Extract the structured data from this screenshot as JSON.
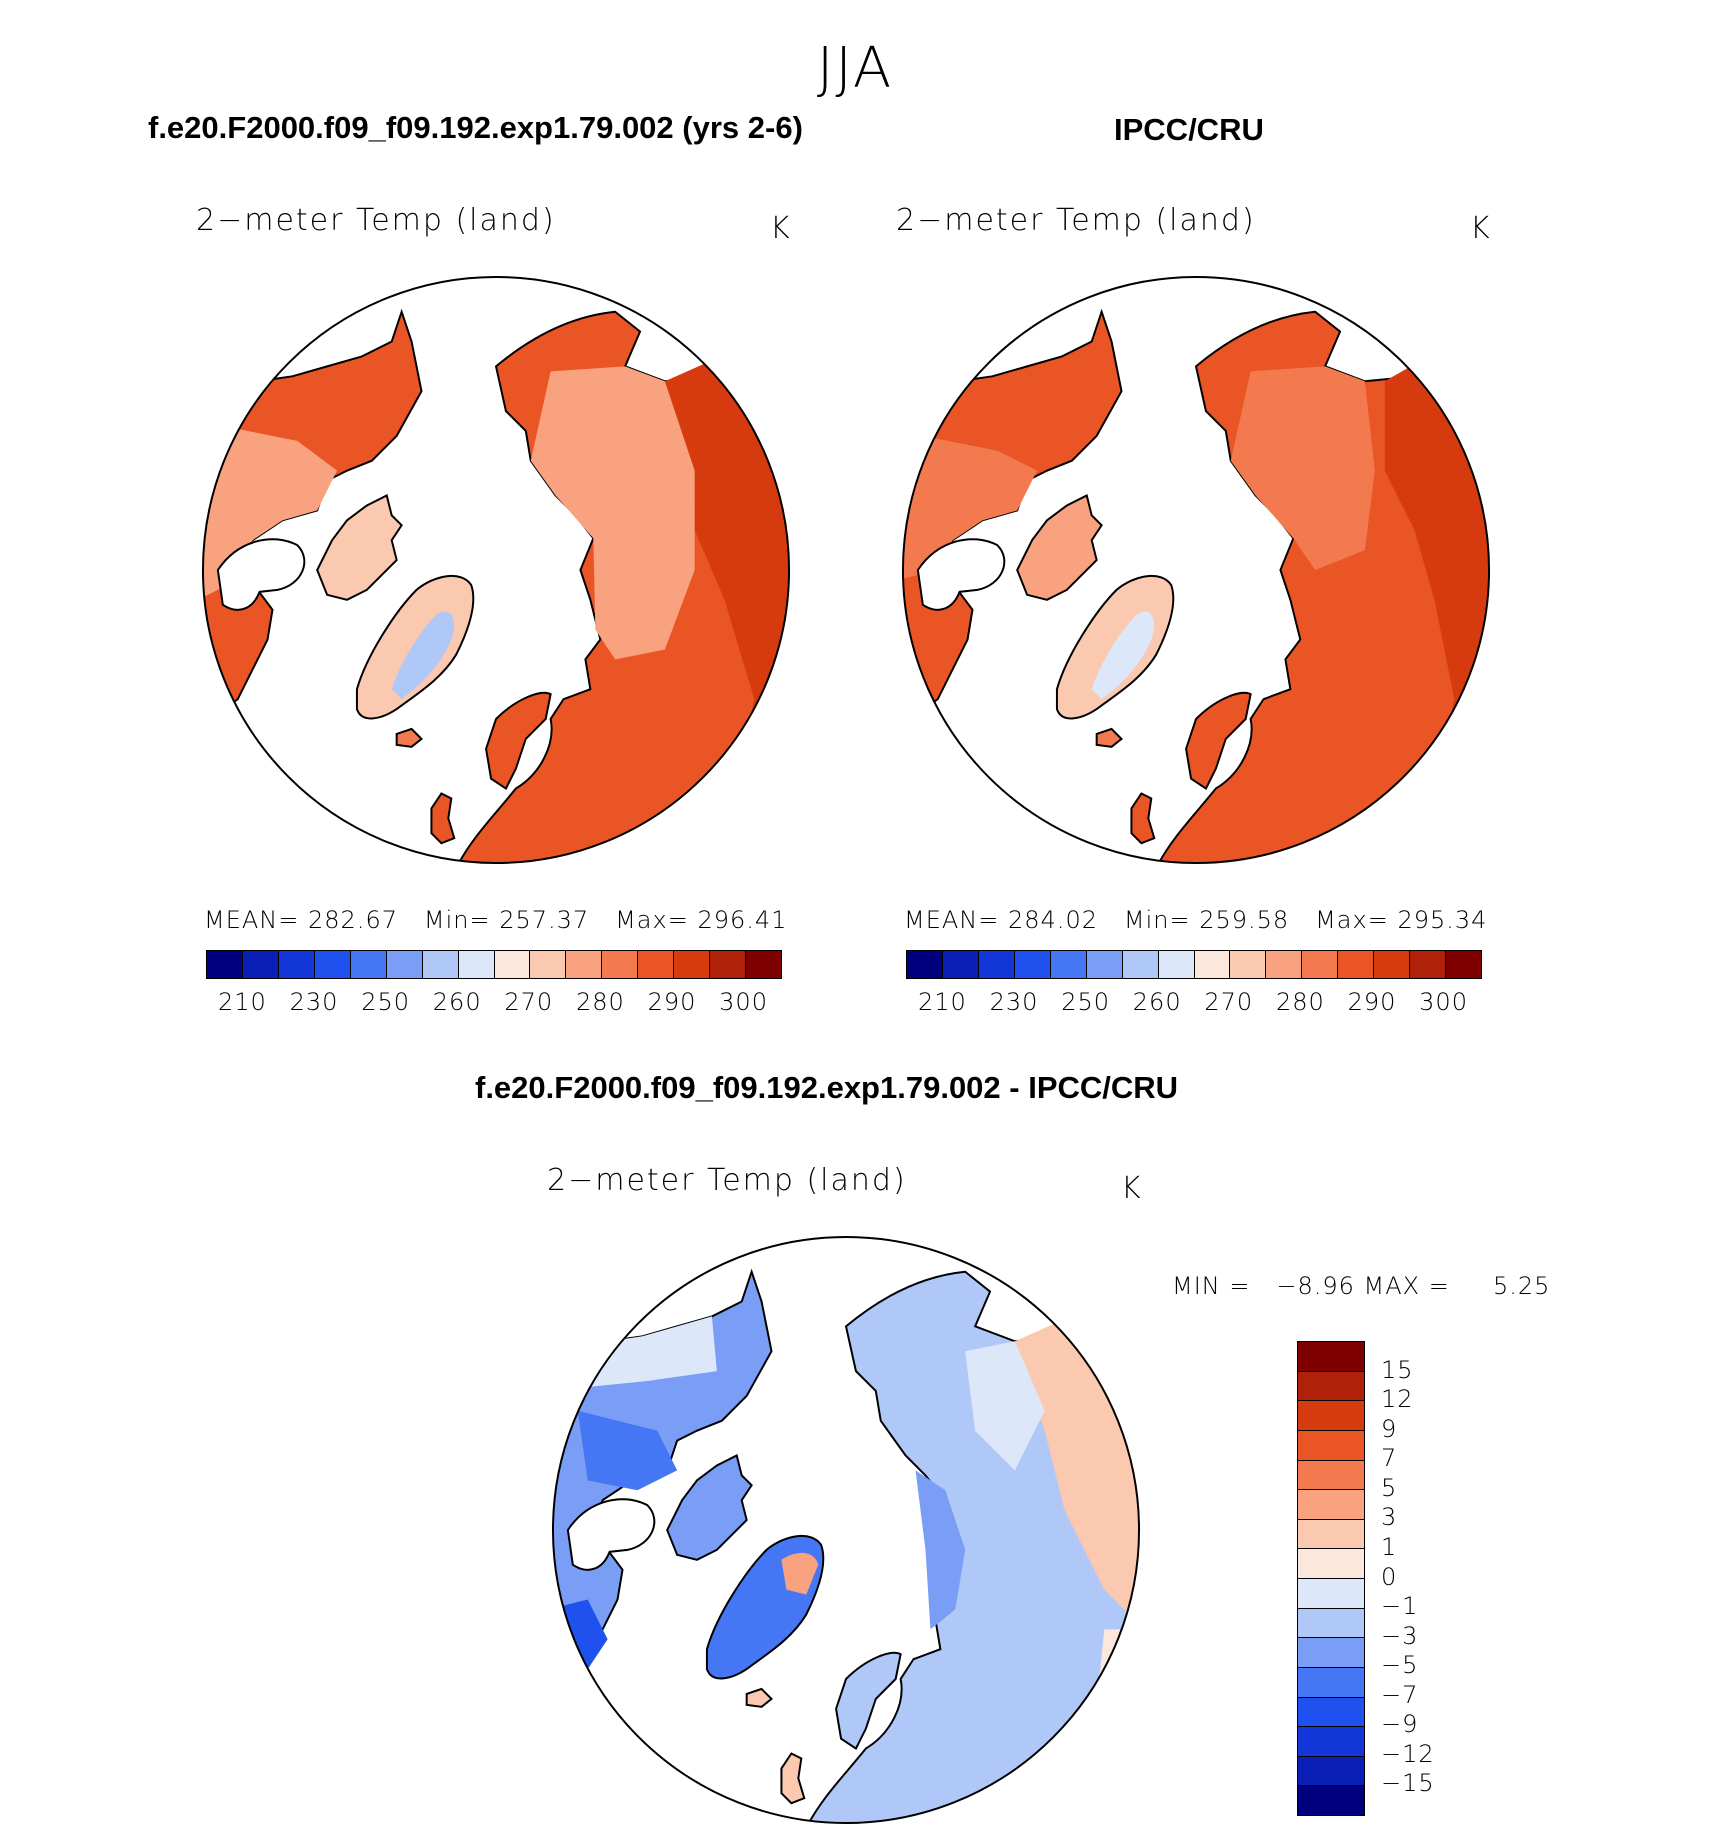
{
  "suptitle": "JJA",
  "panel_left": {
    "title": "f.e20.F2000.f09_f09.192.exp1.79.002 (yrs 2-6)",
    "var_label": "2−meter Temp (land)",
    "units": "K",
    "stats": {
      "mean_label": "MEAN=",
      "mean": "282.67",
      "min_label": "Min=",
      "min": "257.37",
      "max_label": "Max=",
      "max": "296.41"
    }
  },
  "panel_right": {
    "title": "IPCC/CRU",
    "var_label": "2−meter Temp (land)",
    "units": "K",
    "stats": {
      "mean_label": "MEAN=",
      "mean": "284.02",
      "min_label": "Min=",
      "min": "259.58",
      "max_label": "Max=",
      "max": "295.34"
    }
  },
  "abs_colorbar": {
    "ticks": [
      "210",
      "230",
      "250",
      "260",
      "270",
      "280",
      "290",
      "300"
    ],
    "colors": [
      "#00007f",
      "#0a1fb5",
      "#1236d8",
      "#1f51ee",
      "#4576f3",
      "#7a9ef6",
      "#b0c8f8",
      "#dce8fa",
      "#fbe7dc",
      "#fbc8b0",
      "#f8a27f",
      "#f37a4f",
      "#ea5526",
      "#d63b0f",
      "#b0210a",
      "#7f0000"
    ]
  },
  "panel_diff": {
    "title": "f.e20.F2000.f09_f09.192.exp1.79.002 - IPCC/CRU",
    "var_label": "2−meter Temp (land)",
    "units": "K",
    "minmax_text": "MIN =   −8.96 MAX =     5.25"
  },
  "diff_colorbar": {
    "ticks": [
      "15",
      "12",
      "9",
      "7",
      "5",
      "3",
      "1",
      "0",
      "−1",
      "−3",
      "−5",
      "−7",
      "−9",
      "−12",
      "−15"
    ],
    "colors": [
      "#7f0000",
      "#b0210a",
      "#d63b0f",
      "#ea5526",
      "#f37a4f",
      "#f8a27f",
      "#fbc8b0",
      "#fbe7dc",
      "#dce8fa",
      "#b0c8f8",
      "#7a9ef6",
      "#4576f3",
      "#1f51ee",
      "#1236d8",
      "#0a1fb5",
      "#00007f"
    ]
  },
  "colors": {
    "land_warm": "#ea5526",
    "land_mid": "#f37a4f",
    "land_light": "#f8a27f",
    "land_pale": "#fbc8b0",
    "land_hot": "#d63b0f",
    "ice_pale": "#dce8fa",
    "ice_light": "#b0c8f8",
    "diff_pale_blue": "#dce8fa",
    "diff_light_blue": "#b0c8f8",
    "diff_mid_blue": "#7a9ef6",
    "diff_blue": "#4576f3",
    "diff_deep_blue": "#1f51ee",
    "diff_pale_red": "#fbe7dc",
    "diff_light_red": "#fbc8b0",
    "diff_red": "#f8a27f"
  }
}
